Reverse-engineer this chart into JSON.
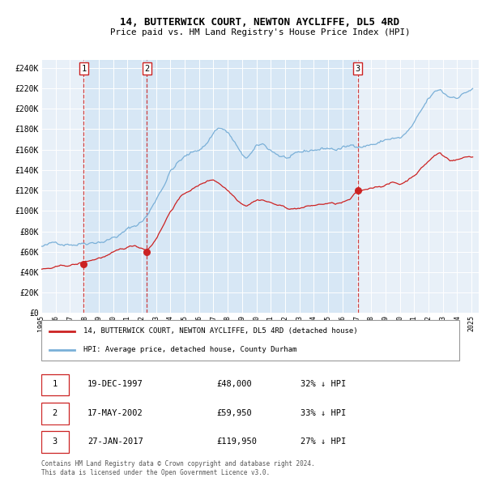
{
  "title": "14, BUTTERWICK COURT, NEWTON AYCLIFFE, DL5 4RD",
  "subtitle": "Price paid vs. HM Land Registry's House Price Index (HPI)",
  "background_color": "#e8f0f8",
  "hpi_color": "#7ab0d8",
  "price_color": "#cc2222",
  "marker_color": "#cc2222",
  "vline_color": "#cc2222",
  "ylabel_ticks": [
    "£0",
    "£20K",
    "£40K",
    "£60K",
    "£80K",
    "£100K",
    "£120K",
    "£140K",
    "£160K",
    "£180K",
    "£200K",
    "£220K",
    "£240K"
  ],
  "ytick_values": [
    0,
    20000,
    40000,
    60000,
    80000,
    100000,
    120000,
    140000,
    160000,
    180000,
    200000,
    220000,
    240000
  ],
  "xlim_start": 1995.0,
  "xlim_end": 2025.5,
  "ylim_min": 0,
  "ylim_max": 248000,
  "sale1_date": 1997.96,
  "sale1_price": 48000,
  "sale2_date": 2002.37,
  "sale2_price": 59950,
  "sale3_date": 2017.07,
  "sale3_price": 119950,
  "legend_line1": "14, BUTTERWICK COURT, NEWTON AYCLIFFE, DL5 4RD (detached house)",
  "legend_line2": "HPI: Average price, detached house, County Durham",
  "table_entries": [
    {
      "num": "1",
      "date": "19-DEC-1997",
      "price": "£48,000",
      "hpi": "32% ↓ HPI"
    },
    {
      "num": "2",
      "date": "17-MAY-2002",
      "price": "£59,950",
      "hpi": "33% ↓ HPI"
    },
    {
      "num": "3",
      "date": "27-JAN-2017",
      "price": "£119,950",
      "hpi": "27% ↓ HPI"
    }
  ],
  "footnote1": "Contains HM Land Registry data © Crown copyright and database right 2024.",
  "footnote2": "This data is licensed under the Open Government Licence v3.0.",
  "xtick_years": [
    1995,
    1996,
    1997,
    1998,
    1999,
    2000,
    2001,
    2002,
    2003,
    2004,
    2005,
    2006,
    2007,
    2008,
    2009,
    2010,
    2011,
    2012,
    2013,
    2014,
    2015,
    2016,
    2017,
    2018,
    2019,
    2020,
    2021,
    2022,
    2023,
    2024,
    2025
  ]
}
